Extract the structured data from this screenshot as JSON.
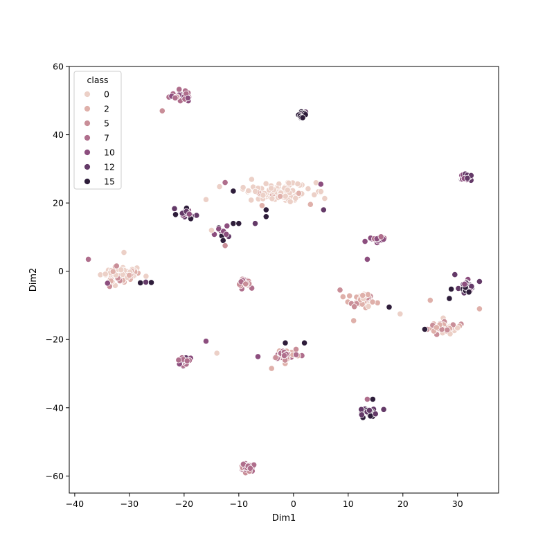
{
  "chart_data": {
    "type": "scatter",
    "title": "",
    "xlabel": "Dim1",
    "ylabel": "Dim2",
    "xlim": [
      -41,
      37.5
    ],
    "ylim": [
      -65,
      60
    ],
    "xticks": [
      -40,
      -30,
      -20,
      -10,
      0,
      10,
      20,
      30
    ],
    "yticks": [
      -60,
      -40,
      -20,
      0,
      20,
      40,
      60
    ],
    "xtick_labels": [
      "−40",
      "−30",
      "−20",
      "−10",
      "0",
      "10",
      "20",
      "30"
    ],
    "ytick_labels": [
      "−60",
      "−40",
      "−20",
      "0",
      "20",
      "40",
      "60"
    ],
    "grid": false,
    "legend": {
      "title": "class",
      "placement": "top-left",
      "entries": [
        {
          "label": "0",
          "color": "#ecd0c7"
        },
        {
          "label": "2",
          "color": "#dfb0aa"
        },
        {
          "label": "5",
          "color": "#c98e98"
        },
        {
          "label": "7",
          "color": "#af6e8c"
        },
        {
          "label": "10",
          "color": "#8c4e7e"
        },
        {
          "label": "12",
          "color": "#643a68"
        },
        {
          "label": "15",
          "color": "#2e1d3a"
        }
      ]
    },
    "clusters": [
      {
        "center": [
          -20.5,
          51.5
        ],
        "spread": [
          2.0,
          1.6
        ],
        "count": 30,
        "classes": [
          7,
          7,
          7,
          5,
          10
        ]
      },
      {
        "center": [
          1.5,
          46.0
        ],
        "spread": [
          0.9,
          0.8
        ],
        "count": 14,
        "classes": [
          15,
          15,
          12
        ]
      },
      {
        "center": [
          -3.0,
          23.0
        ],
        "spread": [
          5.5,
          2.8
        ],
        "count": 110,
        "classes": [
          0,
          0,
          0,
          0,
          0,
          2
        ]
      },
      {
        "center": [
          -19.5,
          17.0
        ],
        "spread": [
          1.6,
          1.2
        ],
        "count": 20,
        "classes": [
          12,
          15,
          12,
          10
        ]
      },
      {
        "center": [
          -13.0,
          11.0
        ],
        "spread": [
          1.5,
          1.5
        ],
        "count": 10,
        "classes": [
          15,
          12,
          10
        ]
      },
      {
        "center": [
          31.5,
          27.5
        ],
        "spread": [
          1.0,
          1.2
        ],
        "count": 26,
        "classes": [
          10,
          12,
          10
        ]
      },
      {
        "center": [
          15.5,
          9.5
        ],
        "spread": [
          1.3,
          0.9
        ],
        "count": 18,
        "classes": [
          10,
          7,
          10
        ]
      },
      {
        "center": [
          -32.0,
          -1.0
        ],
        "spread": [
          2.8,
          2.2
        ],
        "count": 90,
        "classes": [
          0,
          0,
          0,
          2,
          2,
          5
        ]
      },
      {
        "center": [
          -9.0,
          -3.5
        ],
        "spread": [
          1.4,
          1.0
        ],
        "count": 28,
        "classes": [
          5,
          7,
          5
        ]
      },
      {
        "center": [
          12.5,
          -8.5
        ],
        "spread": [
          2.2,
          1.8
        ],
        "count": 45,
        "classes": [
          2,
          2,
          5,
          0
        ]
      },
      {
        "center": [
          31.5,
          -4.5
        ],
        "spread": [
          1.2,
          1.6
        ],
        "count": 30,
        "classes": [
          12,
          10,
          15
        ]
      },
      {
        "center": [
          27.0,
          -16.5
        ],
        "spread": [
          2.6,
          1.6
        ],
        "count": 60,
        "classes": [
          2,
          2,
          0,
          5
        ]
      },
      {
        "center": [
          -20.0,
          -26.5
        ],
        "spread": [
          1.3,
          1.2
        ],
        "count": 26,
        "classes": [
          10,
          7,
          12
        ]
      },
      {
        "center": [
          -1.5,
          -24.5
        ],
        "spread": [
          2.0,
          1.6
        ],
        "count": 45,
        "classes": [
          5,
          5,
          7,
          2
        ]
      },
      {
        "center": [
          13.5,
          -41.0
        ],
        "spread": [
          1.3,
          1.0
        ],
        "count": 26,
        "classes": [
          12,
          15,
          12
        ]
      },
      {
        "center": [
          -8.5,
          -57.5
        ],
        "spread": [
          1.5,
          1.0
        ],
        "count": 40,
        "classes": [
          7,
          5,
          7
        ]
      }
    ],
    "points": [
      {
        "x": -24,
        "y": 47,
        "cls": 5
      },
      {
        "x": -16,
        "y": 21,
        "cls": 0
      },
      {
        "x": -15,
        "y": 12,
        "cls": 0
      },
      {
        "x": -12.5,
        "y": 26,
        "cls": 7
      },
      {
        "x": -11,
        "y": 14,
        "cls": 15
      },
      {
        "x": -10,
        "y": 14,
        "cls": 15
      },
      {
        "x": -11,
        "y": 23.5,
        "cls": 15
      },
      {
        "x": -5,
        "y": 16,
        "cls": 15
      },
      {
        "x": -7,
        "y": 14,
        "cls": 12
      },
      {
        "x": -5,
        "y": 18,
        "cls": 15
      },
      {
        "x": 5,
        "y": 25.5,
        "cls": 10
      },
      {
        "x": 5.5,
        "y": 18,
        "cls": 12
      },
      {
        "x": 13.5,
        "y": 3.5,
        "cls": 10
      },
      {
        "x": -12.5,
        "y": 7.5,
        "cls": 5
      },
      {
        "x": -37.5,
        "y": 3.5,
        "cls": 7
      },
      {
        "x": -31,
        "y": 5.5,
        "cls": 0
      },
      {
        "x": -34,
        "y": -3.5,
        "cls": 10
      },
      {
        "x": -26,
        "y": -3.3,
        "cls": 15
      },
      {
        "x": -27,
        "y": -3.2,
        "cls": 12
      },
      {
        "x": -28,
        "y": -3.4,
        "cls": 15
      },
      {
        "x": 17.5,
        "y": -10.5,
        "cls": 15
      },
      {
        "x": 19.5,
        "y": -12.5,
        "cls": 0
      },
      {
        "x": 11,
        "y": -14.5,
        "cls": 2
      },
      {
        "x": 24,
        "y": -17,
        "cls": 15
      },
      {
        "x": 34,
        "y": -11,
        "cls": 2
      },
      {
        "x": 34,
        "y": -3,
        "cls": 12
      },
      {
        "x": 29.5,
        "y": -1,
        "cls": 12
      },
      {
        "x": 28.5,
        "y": -8,
        "cls": 15
      },
      {
        "x": 25,
        "y": -8.5,
        "cls": 2
      },
      {
        "x": -16,
        "y": -20.5,
        "cls": 10
      },
      {
        "x": -14,
        "y": -24,
        "cls": 0
      },
      {
        "x": -6.5,
        "y": -25,
        "cls": 10
      },
      {
        "x": 2,
        "y": -21,
        "cls": 15
      },
      {
        "x": -1.5,
        "y": -21,
        "cls": 15
      },
      {
        "x": -4,
        "y": -28.5,
        "cls": 2
      },
      {
        "x": 13.5,
        "y": -37.5,
        "cls": 7
      },
      {
        "x": 14.5,
        "y": -37.5,
        "cls": 15
      },
      {
        "x": 16.5,
        "y": -40.5,
        "cls": 12
      },
      {
        "x": 8.5,
        "y": -5.5,
        "cls": 5
      }
    ]
  }
}
